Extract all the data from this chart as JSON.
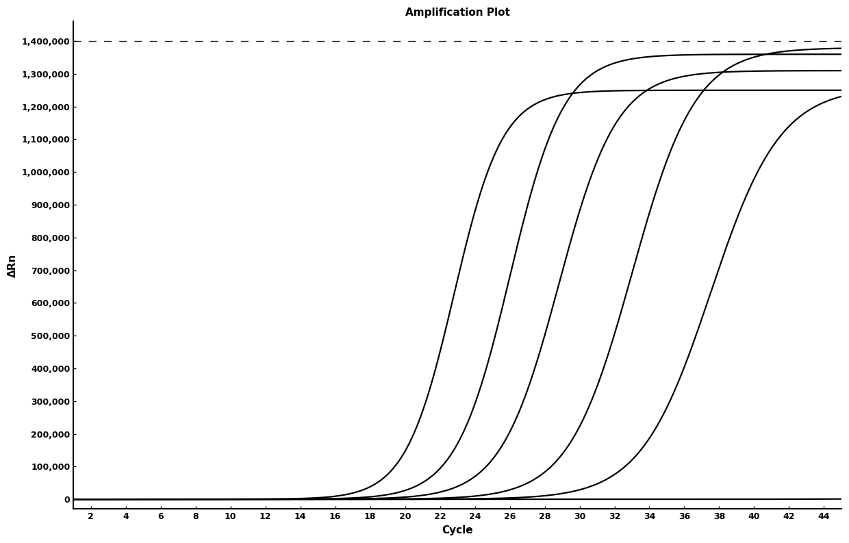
{
  "title": "Amplification Plot",
  "xlabel": "Cycle",
  "ylabel": "ΔRn",
  "xlim": [
    1,
    45
  ],
  "ylim": [
    -30000,
    1460000
  ],
  "xticks": [
    2,
    4,
    6,
    8,
    10,
    12,
    14,
    16,
    18,
    20,
    22,
    24,
    26,
    28,
    30,
    32,
    34,
    36,
    38,
    40,
    42,
    44
  ],
  "yticks": [
    0,
    100000,
    200000,
    300000,
    400000,
    500000,
    600000,
    700000,
    800000,
    900000,
    1000000,
    1100000,
    1200000,
    1300000,
    1400000
  ],
  "ytick_labels": [
    "0",
    "100,000",
    "200,000",
    "300,000",
    "400,000",
    "500,000",
    "600,000",
    "700,000",
    "800,000",
    "900,000",
    "1,000,000",
    "1,100,000",
    "1,200,000",
    "1,300,000",
    "1,400,000"
  ],
  "dashed_line_y": 1400000,
  "curves": [
    {
      "midpoint": 22.8,
      "L": 1250000,
      "k": 0.72
    },
    {
      "midpoint": 26.0,
      "L": 1360000,
      "k": 0.65
    },
    {
      "midpoint": 28.8,
      "L": 1310000,
      "k": 0.6
    },
    {
      "midpoint": 33.0,
      "L": 1380000,
      "k": 0.55
    },
    {
      "midpoint": 37.5,
      "L": 1260000,
      "k": 0.5
    },
    {
      "midpoint": 50.0,
      "L": 8000,
      "k": 0.4
    }
  ],
  "line_color": "#000000",
  "background_color": "#ffffff",
  "title_fontsize": 11,
  "label_fontsize": 11,
  "tick_fontsize": 9
}
